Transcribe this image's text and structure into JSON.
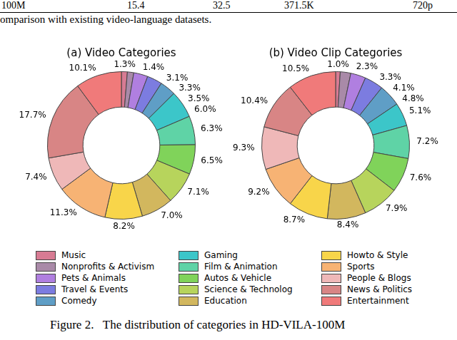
{
  "header_fragment": {
    "row": [
      "100M",
      "15.4",
      "32.5",
      "371.5K",
      "720p"
    ],
    "text": "omparison with existing video-language datasets."
  },
  "chart_data": [
    {
      "type": "doughnut",
      "title": "(a) Video Categories",
      "categories": [
        "Music",
        "Nonprofits & Activism",
        "Pets & Animals",
        "Travel & Events",
        "Comedy",
        "Gaming",
        "Film & Animation",
        "Autos & Vehicle",
        "Science & Technolog",
        "Education",
        "Howto & Style",
        "Sports",
        "People & Blogs",
        "News & Politics",
        "Entertainment"
      ],
      "values": [
        1.3,
        1.4,
        3.1,
        3.3,
        3.5,
        6.0,
        6.3,
        6.5,
        7.1,
        7.0,
        8.2,
        11.3,
        7.4,
        17.7,
        10.1
      ],
      "value_labels": [
        "1.3%",
        "1.4%",
        "3.1%",
        "3.3%",
        "3.5%",
        "6.0%",
        "6.3%",
        "6.5%",
        "7.1%",
        "7.0%",
        "8.2%",
        "11.3%",
        "7.4%",
        "17.7%",
        "10.1%"
      ],
      "colors": [
        "#d77b93",
        "#a98aa8",
        "#b07fe0",
        "#7c7ce0",
        "#5f9ec6",
        "#3cc6c9",
        "#5fd3a6",
        "#80d35a",
        "#b7d45c",
        "#d2b75e",
        "#f8d54a",
        "#f7b374",
        "#efb8b8",
        "#d88585",
        "#f07a7a"
      ],
      "data_labels": true,
      "legend": "bottom"
    },
    {
      "type": "doughnut",
      "title": "(b) Video Clip Categories",
      "categories": [
        "Music",
        "Nonprofits & Activism",
        "Pets & Animals",
        "Travel & Events",
        "Comedy",
        "Gaming",
        "Film & Animation",
        "Autos & Vehicle",
        "Science & Technolog",
        "Education",
        "Howto & Style",
        "Sports",
        "People & Blogs",
        "News & Politics",
        "Entertainment"
      ],
      "values": [
        1.0,
        2.3,
        3.3,
        4.1,
        4.8,
        5.1,
        7.2,
        7.6,
        7.9,
        8.4,
        8.7,
        9.2,
        9.3,
        10.4,
        10.5
      ],
      "value_labels": [
        "1.0%",
        "2.3%",
        "3.3%",
        "4.1%",
        "4.8%",
        "5.1%",
        "7.2%",
        "7.6%",
        "7.9%",
        "8.4%",
        "8.7%",
        "9.2%",
        "9.3%",
        "10.4%",
        "10.5%"
      ],
      "colors": [
        "#d77b93",
        "#a98aa8",
        "#b07fe0",
        "#7c7ce0",
        "#5f9ec6",
        "#3cc6c9",
        "#5fd3a6",
        "#80d35a",
        "#b7d45c",
        "#d2b75e",
        "#f8d54a",
        "#f7b374",
        "#efb8b8",
        "#d88585",
        "#f07a7a"
      ],
      "data_labels": true,
      "legend": "bottom"
    }
  ],
  "caption": "Figure 2.   The distribution of categories in HD-VILA-100M"
}
